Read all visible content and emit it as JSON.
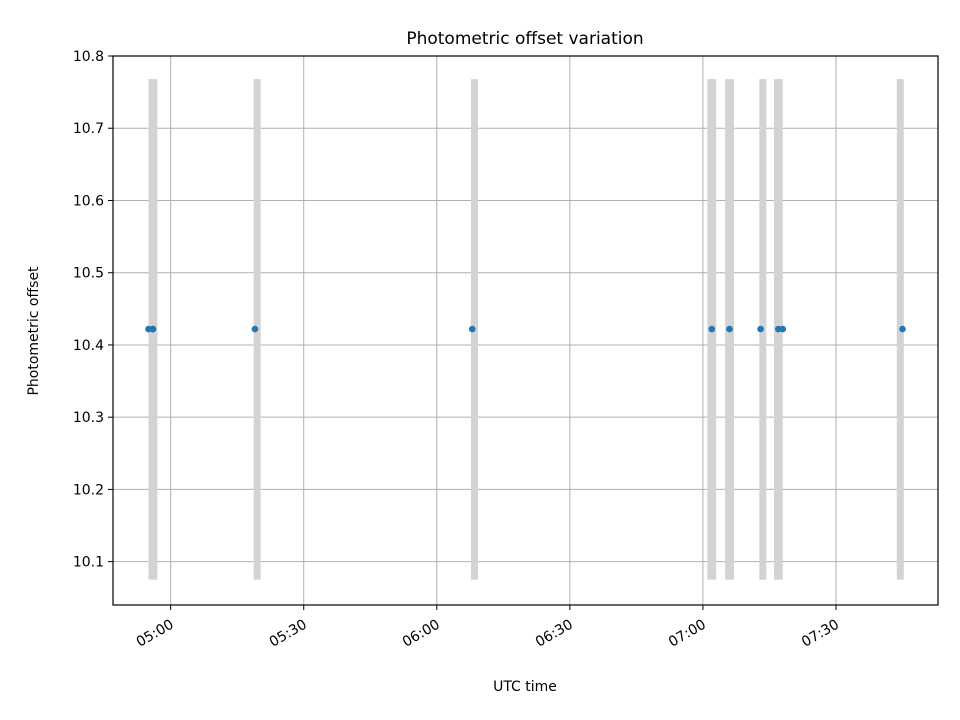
{
  "chart_data": {
    "type": "scatter",
    "title": "Photometric offset variation",
    "xlabel": "UTC time",
    "ylabel": "Photometric offset",
    "x_axis": {
      "kind": "time",
      "range": [
        "04:47",
        "07:53"
      ],
      "ticks": [
        "05:00",
        "05:30",
        "06:00",
        "06:30",
        "07:00",
        "07:30"
      ]
    },
    "y_axis": {
      "range": [
        10.04,
        10.8
      ],
      "ticks": [
        "10.1",
        "10.2",
        "10.3",
        "10.4",
        "10.5",
        "10.6",
        "10.7",
        "10.8"
      ]
    },
    "grid": true,
    "band_range": [
      10.075,
      10.768
    ],
    "band_color": "#d3d3d3",
    "point_color": "#1f77b4",
    "bands": [
      {
        "start": "04:55",
        "end": "04:57"
      },
      {
        "start": "05:19",
        "end": "05:20"
      },
      {
        "start": "06:08",
        "end": "06:09"
      },
      {
        "start": "07:01",
        "end": "07:03"
      },
      {
        "start": "07:05",
        "end": "07:07"
      },
      {
        "start": "07:13",
        "end": "07:14"
      },
      {
        "start": "07:16",
        "end": "07:18"
      },
      {
        "start": "07:44",
        "end": "07:45"
      }
    ],
    "points": [
      {
        "x": "04:55",
        "y": 10.422
      },
      {
        "x": "04:56",
        "y": 10.422
      },
      {
        "x": "04:56",
        "y": 10.422
      },
      {
        "x": "05:19",
        "y": 10.422
      },
      {
        "x": "06:08",
        "y": 10.422
      },
      {
        "x": "07:02",
        "y": 10.422
      },
      {
        "x": "07:06",
        "y": 10.422
      },
      {
        "x": "07:13",
        "y": 10.422
      },
      {
        "x": "07:17",
        "y": 10.422
      },
      {
        "x": "07:18",
        "y": 10.422
      },
      {
        "x": "07:45",
        "y": 10.422
      }
    ]
  }
}
